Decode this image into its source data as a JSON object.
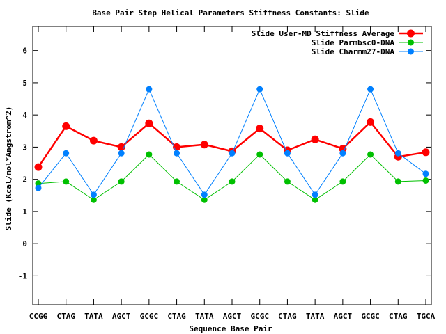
{
  "chart_data": {
    "type": "line",
    "title": "Base Pair Step Helical Parameters Stiffness Constants: Slide",
    "xlabel": "Sequence Base Pair",
    "ylabel": "Slide (Kcal/mol*Angstrom^2)",
    "ylim": [
      -1.9,
      6.75
    ],
    "yticks": [
      "-1",
      "0",
      "1",
      "2",
      "3",
      "4",
      "5",
      "6"
    ],
    "categories": [
      "CCGG",
      "CTAG",
      "TATA",
      "AGCT",
      "GCGC",
      "CTAG",
      "TATA",
      "AGCT",
      "GCGC",
      "CTAG",
      "TATA",
      "AGCT",
      "GCGC",
      "CTAG",
      "TGCA"
    ],
    "legend_position": "top-right",
    "grid": false,
    "series": [
      {
        "name": "Slide User-MD Stiffness Average",
        "color": "#ff0000",
        "values": [
          2.38,
          3.65,
          3.2,
          3.0,
          3.74,
          3.0,
          3.08,
          2.87,
          3.58,
          2.9,
          3.24,
          2.95,
          3.78,
          2.7,
          2.84
        ]
      },
      {
        "name": "Slide Parmbsc0-DNA",
        "color": "#00c000",
        "values": [
          1.87,
          1.93,
          1.36,
          1.93,
          2.77,
          1.93,
          1.36,
          1.93,
          2.77,
          1.93,
          1.36,
          1.93,
          2.77,
          1.93,
          1.96
        ]
      },
      {
        "name": "Slide Charmm27-DNA",
        "color": "#0080ff",
        "values": [
          1.73,
          2.81,
          1.52,
          2.81,
          4.8,
          2.81,
          1.52,
          2.81,
          4.8,
          2.81,
          1.52,
          2.81,
          4.8,
          2.81,
          2.17
        ]
      }
    ]
  }
}
